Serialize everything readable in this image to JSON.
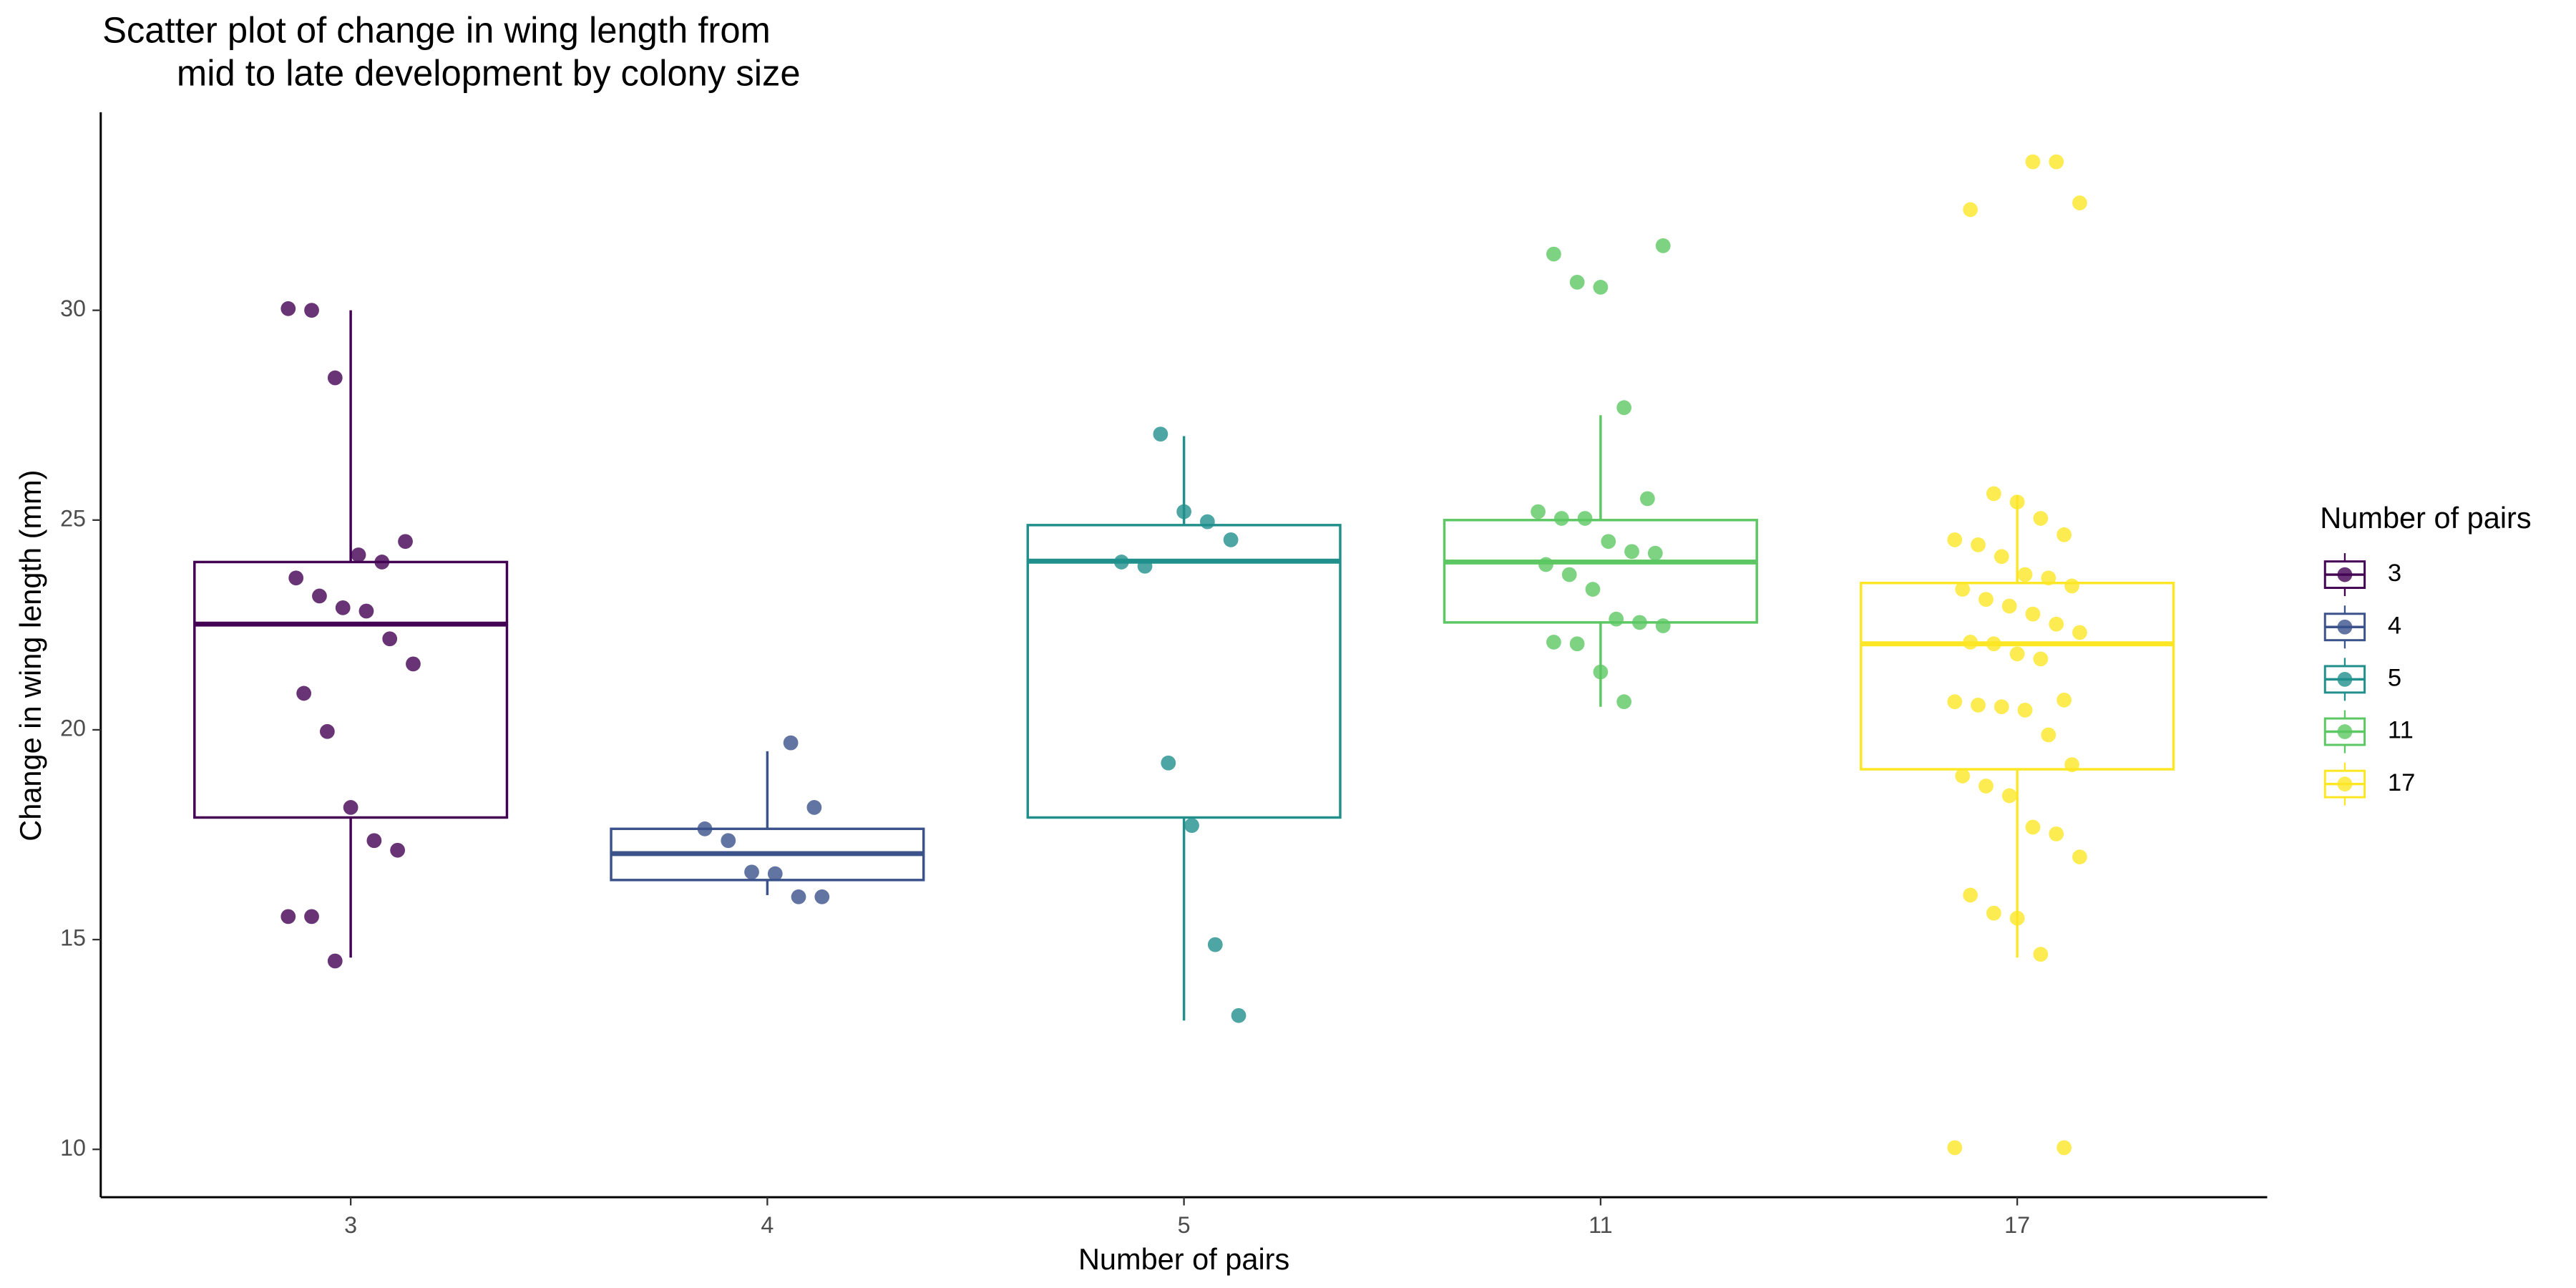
{
  "chart_data": {
    "type": "box",
    "title": [
      "Scatter plot of change in wing length from",
      "mid to late development by colony size"
    ],
    "x_label": "Number of pairs",
    "y_label": "Change in wing length (mm)",
    "legend_title": "Number of pairs",
    "categories": [
      "3",
      "4",
      "5",
      "11",
      "17"
    ],
    "ylim": [
      8.86,
      34.72
    ],
    "yticks": [
      10,
      15,
      20,
      25,
      30
    ],
    "series": [
      {
        "name": "3",
        "color": "#440154",
        "box": {
          "whisker_low": 14.57,
          "q1": 17.91,
          "median": 22.52,
          "q3": 24.0,
          "whisker_high": 30.0
        },
        "values": [
          30.04,
          30.0,
          28.39,
          24.17,
          24.0,
          24.49,
          23.62,
          23.19,
          22.91,
          22.83,
          22.17,
          21.57,
          20.87,
          19.96,
          18.15,
          17.36,
          17.13,
          15.55,
          15.55,
          14.49
        ]
      },
      {
        "name": "4",
        "color": "#3b528b",
        "box": {
          "whisker_low": 16.06,
          "q1": 16.42,
          "median": 17.05,
          "q3": 17.64,
          "whisker_high": 19.49
        },
        "values": [
          19.69,
          18.15,
          17.64,
          17.36,
          16.61,
          16.57,
          16.02,
          16.02
        ]
      },
      {
        "name": "5",
        "color": "#21908d",
        "box": {
          "whisker_low": 13.07,
          "q1": 17.91,
          "median": 24.02,
          "q3": 24.88,
          "whisker_high": 27.0
        },
        "values": [
          27.05,
          25.2,
          24.96,
          24.53,
          24.0,
          23.9,
          19.21,
          17.72,
          14.88,
          13.19
        ]
      },
      {
        "name": "11",
        "color": "#5dc863",
        "box": {
          "whisker_low": 20.55,
          "q1": 22.56,
          "median": 24.0,
          "q3": 25.0,
          "whisker_high": 27.5
        },
        "values": [
          31.54,
          31.34,
          30.67,
          30.55,
          27.68,
          25.51,
          25.2,
          25.04,
          25.04,
          24.49,
          24.25,
          24.21,
          23.94,
          23.7,
          23.35,
          22.64,
          22.56,
          22.48,
          22.09,
          22.05,
          21.38,
          20.67
        ]
      },
      {
        "name": "17",
        "color": "#fde725",
        "box": {
          "whisker_low": 14.57,
          "q1": 19.06,
          "median": 22.05,
          "q3": 23.5,
          "whisker_high": 25.59
        },
        "values": [
          33.54,
          33.54,
          32.56,
          32.4,
          25.63,
          25.43,
          25.04,
          24.65,
          24.53,
          24.41,
          24.13,
          23.7,
          23.62,
          23.43,
          23.35,
          23.11,
          22.95,
          22.76,
          22.52,
          22.32,
          22.09,
          22.05,
          21.81,
          21.69,
          20.71,
          20.67,
          20.59,
          20.55,
          20.47,
          19.88,
          19.17,
          18.9,
          18.66,
          18.43,
          17.68,
          17.52,
          16.97,
          16.06,
          15.63,
          15.51,
          14.65,
          10.04,
          10.04
        ]
      }
    ]
  }
}
